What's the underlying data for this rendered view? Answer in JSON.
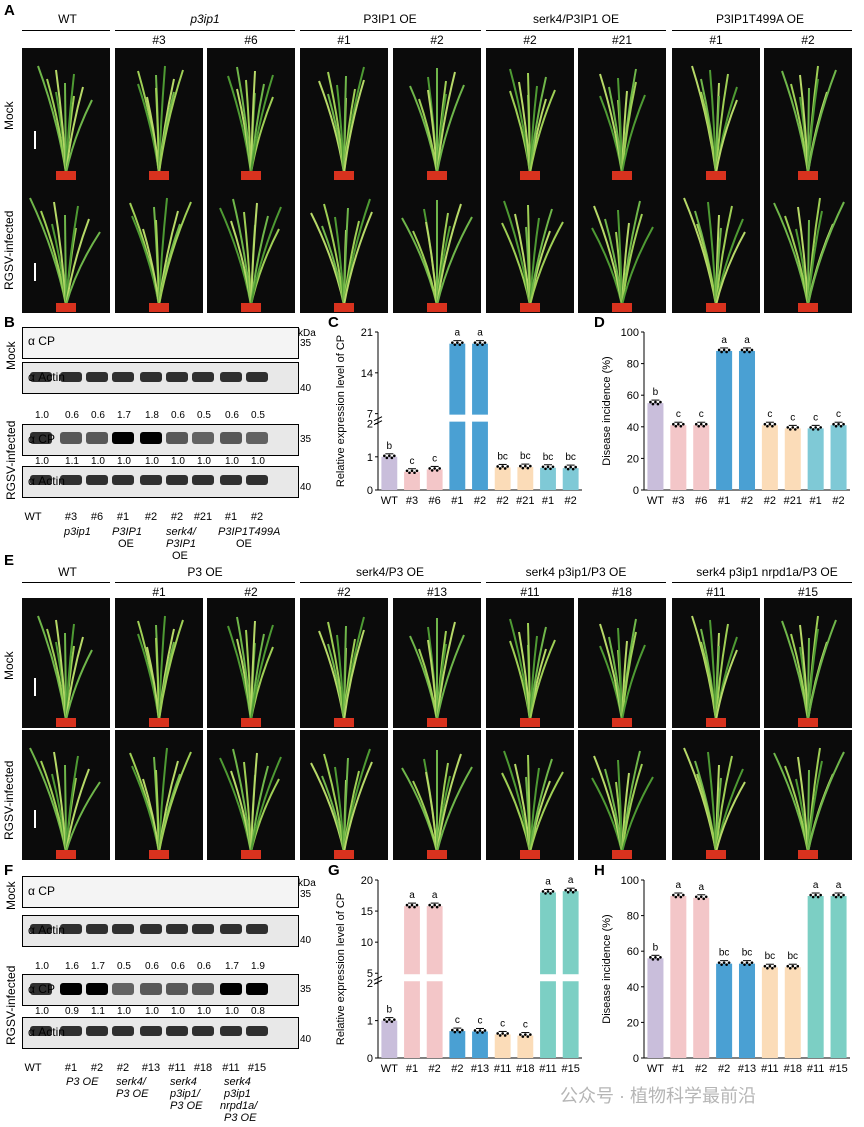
{
  "panels": {
    "A": "A",
    "B": "B",
    "C": "C",
    "D": "D",
    "E": "E",
    "F": "F",
    "G": "G",
    "H": "H"
  },
  "rows": {
    "mock": "Mock",
    "infected": "RGSV-infected"
  },
  "A": {
    "groups": [
      "WT",
      "p3ip1",
      "P3IP1 OE",
      "serk4/P3IP1 OE",
      "P3IP1T499A OE"
    ],
    "lines": [
      "#3",
      "#6",
      "#1",
      "#2",
      "#2",
      "#21",
      "#1",
      "#2"
    ]
  },
  "E": {
    "groups": [
      "WT",
      "P3 OE",
      "serk4/P3 OE",
      "serk4 p3ip1/P3 OE",
      "serk4 p3ip1 nrpd1a/P3 OE"
    ],
    "lines": [
      "#1",
      "#2",
      "#2",
      "#13",
      "#11",
      "#18",
      "#11",
      "#15"
    ]
  },
  "B": {
    "kda": "kDa",
    "cp": "α CP",
    "actin": "α Actin",
    "m35": "35",
    "m40": "40",
    "cp_vals": [
      "1.0",
      "0.6",
      "0.6",
      "1.7",
      "1.8",
      "0.6",
      "0.5",
      "0.6",
      "0.5"
    ],
    "actin_vals": [
      "1.0",
      "1.1",
      "1.0",
      "1.0",
      "1.0",
      "1.0",
      "1.0",
      "1.0",
      "1.0"
    ],
    "lanes": [
      "WT",
      "#3",
      "#6",
      "#1",
      "#2",
      "#2",
      "#21",
      "#1",
      "#2"
    ],
    "genos": [
      "p3ip1",
      "P3IP1",
      "OE",
      "serk4/",
      "P3IP1",
      "OE",
      "P3IP1T499A",
      "OE"
    ]
  },
  "F": {
    "kda": "kDa",
    "cp": "α CP",
    "actin": "α Actin",
    "m35": "35",
    "m40": "40",
    "cp_vals": [
      "1.0",
      "1.6",
      "1.7",
      "0.5",
      "0.6",
      "0.6",
      "0.6",
      "1.7",
      "1.9"
    ],
    "actin_vals": [
      "1.0",
      "0.9",
      "1.1",
      "1.0",
      "1.0",
      "1.0",
      "1.0",
      "1.0",
      "0.8"
    ],
    "lanes": [
      "WT",
      "#1",
      "#2",
      "#2",
      "#13",
      "#11",
      "#18",
      "#11",
      "#15"
    ],
    "genos": [
      "P3 OE",
      "serk4/",
      "P3 OE",
      "serk4",
      "p3ip1/",
      "P3 OE",
      "serk4",
      "p3ip1",
      "nrpd1a/",
      "P3 OE"
    ]
  },
  "chart_data": [
    {
      "type": "bar",
      "panel": "C",
      "ylabel": "Relative expression level of CP",
      "categories": [
        "WT",
        "#3",
        "#6",
        "#1",
        "#2",
        "#2",
        "#21",
        "#1",
        "#2"
      ],
      "values": [
        1.0,
        0.55,
        0.62,
        19.0,
        19.0,
        0.68,
        0.69,
        0.67,
        0.66
      ],
      "letters": [
        "b",
        "c",
        "c",
        "a",
        "a",
        "bc",
        "bc",
        "bc",
        "bc"
      ],
      "yticks": [
        "0",
        "1",
        "2",
        "7",
        "14",
        "21"
      ],
      "broken_axis": true
    },
    {
      "type": "bar",
      "panel": "D",
      "ylabel": "Disease incidence (%)",
      "categories": [
        "WT",
        "#3",
        "#6",
        "#1",
        "#2",
        "#2",
        "#21",
        "#1",
        "#2"
      ],
      "values": [
        55,
        41,
        41,
        88,
        88,
        41,
        39,
        39,
        41
      ],
      "letters": [
        "b",
        "c",
        "c",
        "a",
        "a",
        "c",
        "c",
        "c",
        "c"
      ],
      "yticks": [
        "0",
        "20",
        "40",
        "60",
        "80",
        "100"
      ],
      "ylim": [
        0,
        100
      ]
    },
    {
      "type": "bar",
      "panel": "G",
      "ylabel": "Relative expression level of CP",
      "categories": [
        "WT",
        "#1",
        "#2",
        "#2",
        "#13",
        "#11",
        "#18",
        "#11",
        "#15"
      ],
      "values": [
        1.0,
        15.8,
        15.8,
        0.72,
        0.71,
        0.63,
        0.6,
        18.0,
        18.2
      ],
      "letters": [
        "b",
        "a",
        "a",
        "c",
        "c",
        "c",
        "c",
        "a",
        "a"
      ],
      "yticks": [
        "0",
        "1",
        "2",
        "5",
        "10",
        "15",
        "20"
      ],
      "broken_axis": true
    },
    {
      "type": "bar",
      "panel": "H",
      "ylabel": "Disease incidence (%)",
      "categories": [
        "WT",
        "#1",
        "#2",
        "#2",
        "#13",
        "#11",
        "#18",
        "#11",
        "#15"
      ],
      "values": [
        56,
        91,
        90,
        53,
        53,
        51,
        51,
        91,
        91
      ],
      "letters": [
        "b",
        "a",
        "a",
        "bc",
        "bc",
        "bc",
        "bc",
        "a",
        "a"
      ],
      "yticks": [
        "0",
        "20",
        "40",
        "60",
        "80",
        "100"
      ],
      "ylim": [
        0,
        100
      ]
    }
  ],
  "colors": {
    "wt": "#c9bedb",
    "mut": "#f3c6c8",
    "oe": "#4aa0d3",
    "serk": "#fbdcb8",
    "t499": "#7fc9d6",
    "teal": "#7ccfc4"
  },
  "watermark": "公众号 · 植物科学最前沿"
}
